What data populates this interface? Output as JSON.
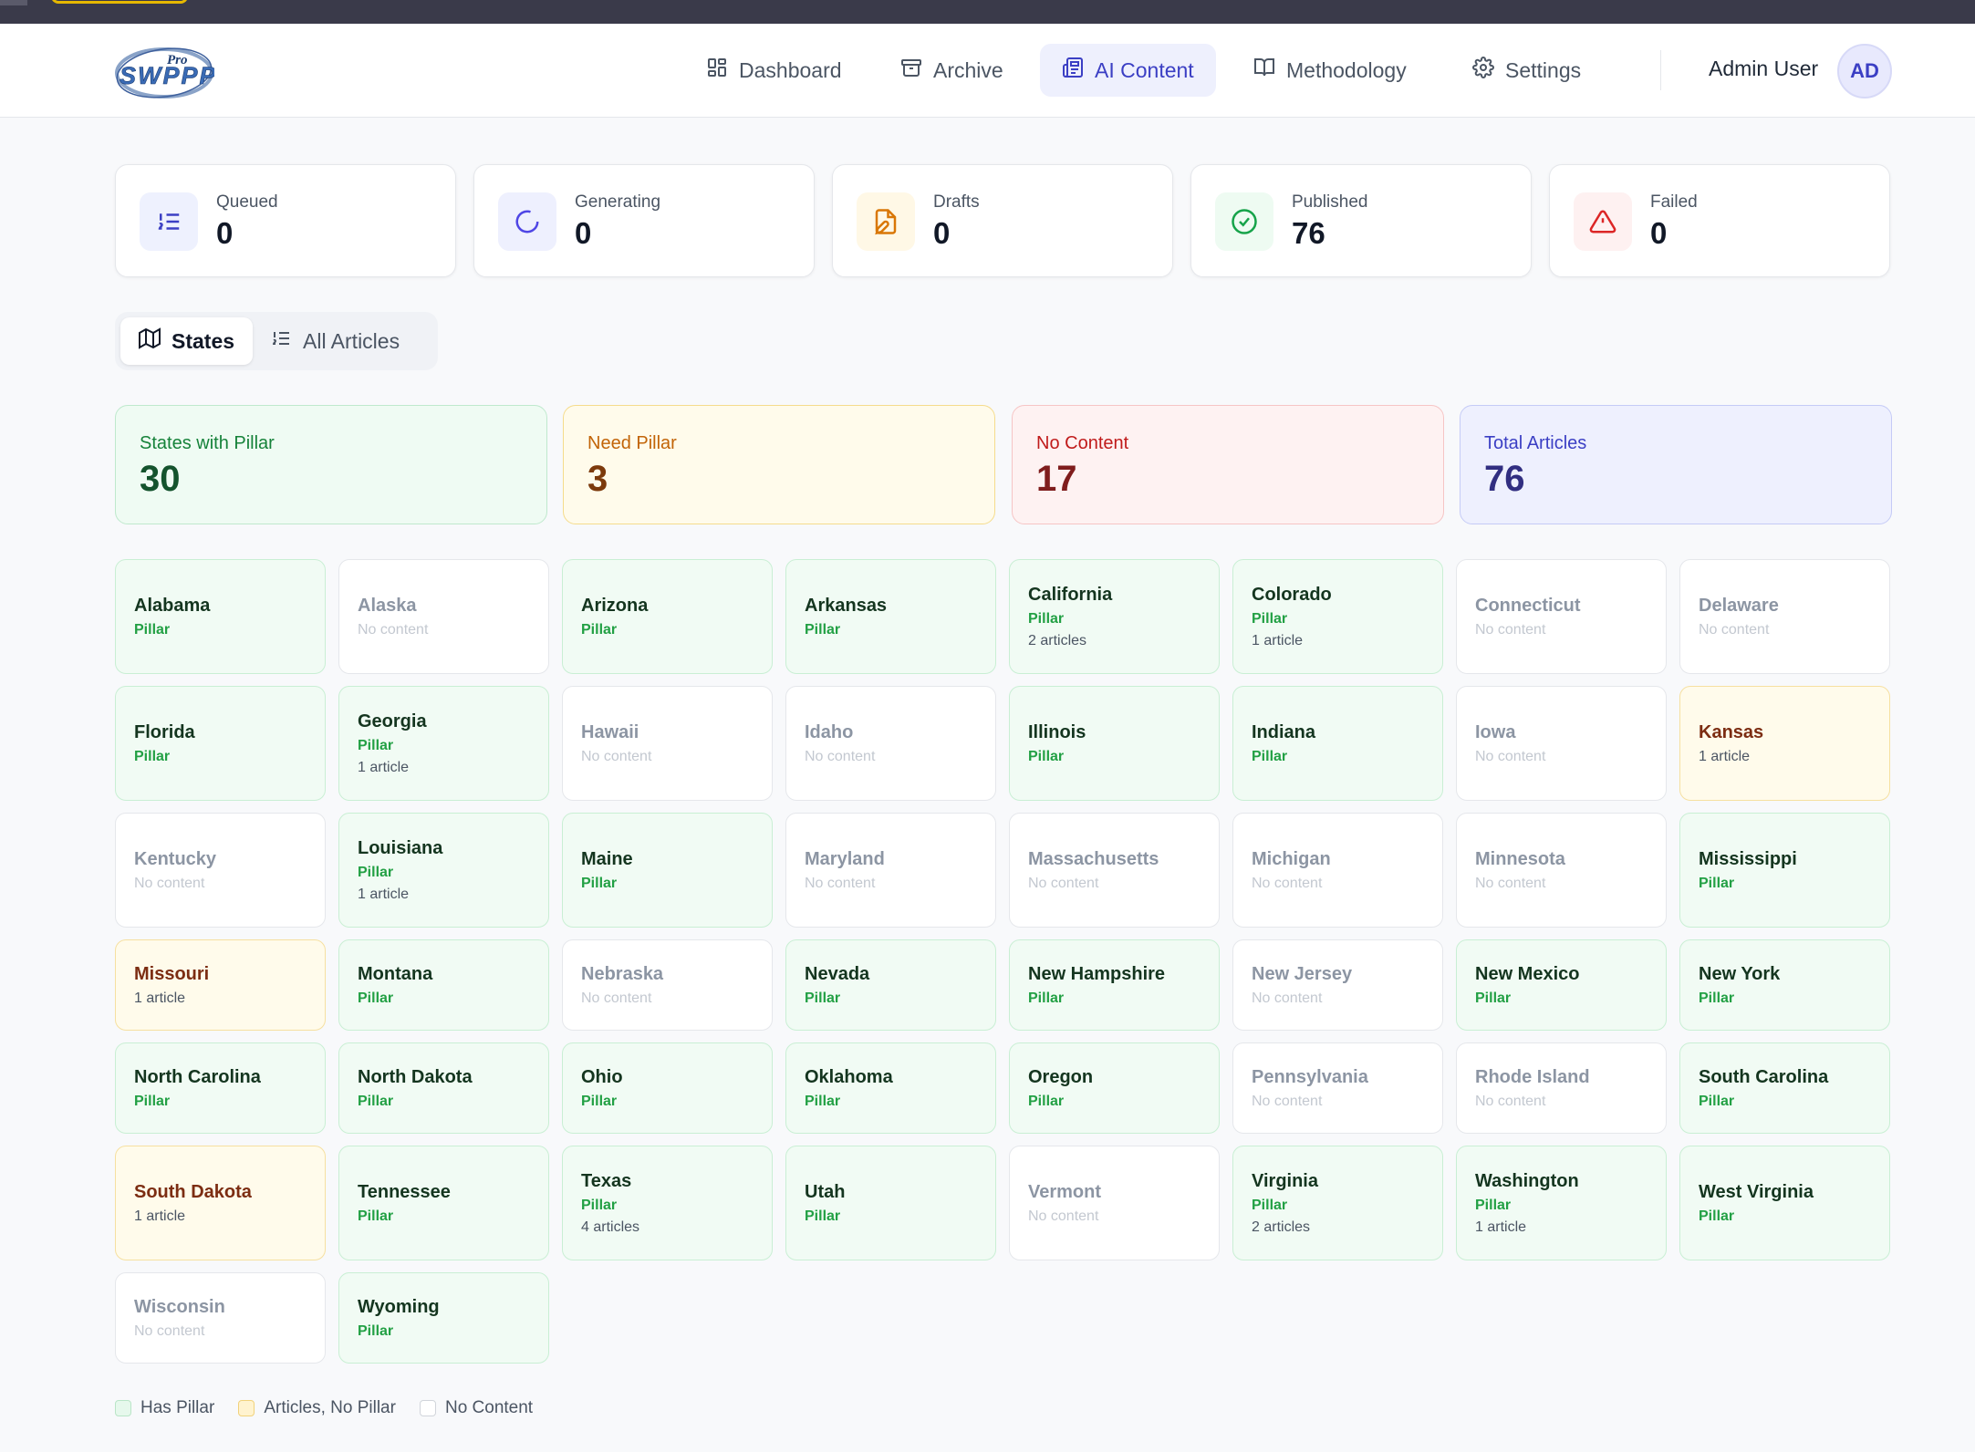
{
  "nav": {
    "logo_text": "SWPPP",
    "logo_sup": "Pro",
    "items": [
      {
        "label": "Dashboard",
        "icon": "dashboard-icon"
      },
      {
        "label": "Archive",
        "icon": "archive-icon"
      },
      {
        "label": "AI Content",
        "icon": "newspaper-icon"
      },
      {
        "label": "Methodology",
        "icon": "book-icon"
      },
      {
        "label": "Settings",
        "icon": "gear-icon"
      }
    ],
    "active": "AI Content",
    "user_name": "Admin User",
    "user_initials": "AD"
  },
  "stats": [
    {
      "label": "Queued",
      "value": "0",
      "icon": "list-ordered-icon",
      "color": "#3b3fc4"
    },
    {
      "label": "Generating",
      "value": "0",
      "icon": "spinner-icon",
      "color": "#4f46e5"
    },
    {
      "label": "Drafts",
      "value": "0",
      "icon": "file-edit-icon",
      "color": "#d97706"
    },
    {
      "label": "Published",
      "value": "76",
      "icon": "check-circle-icon",
      "color": "#16a34a"
    },
    {
      "label": "Failed",
      "value": "0",
      "icon": "alert-triangle-icon",
      "color": "#dc2626"
    }
  ],
  "tabs": [
    {
      "label": "States",
      "icon": "map-icon",
      "active": true
    },
    {
      "label": "All Articles",
      "icon": "list-icon",
      "active": false
    }
  ],
  "summary": [
    {
      "label": "States with Pillar",
      "value": "30"
    },
    {
      "label": "Need Pillar",
      "value": "3"
    },
    {
      "label": "No Content",
      "value": "17"
    },
    {
      "label": "Total Articles",
      "value": "76"
    }
  ],
  "states": [
    {
      "name": "Alabama",
      "status": "Pillar",
      "count": ""
    },
    {
      "name": "Alaska",
      "status": "No content",
      "count": ""
    },
    {
      "name": "Arizona",
      "status": "Pillar",
      "count": ""
    },
    {
      "name": "Arkansas",
      "status": "Pillar",
      "count": ""
    },
    {
      "name": "California",
      "status": "Pillar",
      "count": "2 articles"
    },
    {
      "name": "Colorado",
      "status": "Pillar",
      "count": "1 article"
    },
    {
      "name": "Connecticut",
      "status": "No content",
      "count": ""
    },
    {
      "name": "Delaware",
      "status": "No content",
      "count": ""
    },
    {
      "name": "Florida",
      "status": "Pillar",
      "count": ""
    },
    {
      "name": "Georgia",
      "status": "Pillar",
      "count": "1 article"
    },
    {
      "name": "Hawaii",
      "status": "No content",
      "count": ""
    },
    {
      "name": "Idaho",
      "status": "No content",
      "count": ""
    },
    {
      "name": "Illinois",
      "status": "Pillar",
      "count": ""
    },
    {
      "name": "Indiana",
      "status": "Pillar",
      "count": ""
    },
    {
      "name": "Iowa",
      "status": "No content",
      "count": ""
    },
    {
      "name": "Kansas",
      "status": "",
      "count": "1 article"
    },
    {
      "name": "Kentucky",
      "status": "No content",
      "count": ""
    },
    {
      "name": "Louisiana",
      "status": "Pillar",
      "count": "1 article"
    },
    {
      "name": "Maine",
      "status": "Pillar",
      "count": ""
    },
    {
      "name": "Maryland",
      "status": "No content",
      "count": ""
    },
    {
      "name": "Massachusetts",
      "status": "No content",
      "count": ""
    },
    {
      "name": "Michigan",
      "status": "No content",
      "count": ""
    },
    {
      "name": "Minnesota",
      "status": "No content",
      "count": ""
    },
    {
      "name": "Mississippi",
      "status": "Pillar",
      "count": ""
    },
    {
      "name": "Missouri",
      "status": "",
      "count": "1 article"
    },
    {
      "name": "Montana",
      "status": "Pillar",
      "count": ""
    },
    {
      "name": "Nebraska",
      "status": "No content",
      "count": ""
    },
    {
      "name": "Nevada",
      "status": "Pillar",
      "count": ""
    },
    {
      "name": "New Hampshire",
      "status": "Pillar",
      "count": ""
    },
    {
      "name": "New Jersey",
      "status": "No content",
      "count": ""
    },
    {
      "name": "New Mexico",
      "status": "Pillar",
      "count": ""
    },
    {
      "name": "New York",
      "status": "Pillar",
      "count": ""
    },
    {
      "name": "North Carolina",
      "status": "Pillar",
      "count": ""
    },
    {
      "name": "North Dakota",
      "status": "Pillar",
      "count": ""
    },
    {
      "name": "Ohio",
      "status": "Pillar",
      "count": ""
    },
    {
      "name": "Oklahoma",
      "status": "Pillar",
      "count": ""
    },
    {
      "name": "Oregon",
      "status": "Pillar",
      "count": ""
    },
    {
      "name": "Pennsylvania",
      "status": "No content",
      "count": ""
    },
    {
      "name": "Rhode Island",
      "status": "No content",
      "count": ""
    },
    {
      "name": "South Carolina",
      "status": "Pillar",
      "count": ""
    },
    {
      "name": "South Dakota",
      "status": "",
      "count": "1 article"
    },
    {
      "name": "Tennessee",
      "status": "Pillar",
      "count": ""
    },
    {
      "name": "Texas",
      "status": "Pillar",
      "count": "4 articles"
    },
    {
      "name": "Utah",
      "status": "Pillar",
      "count": ""
    },
    {
      "name": "Vermont",
      "status": "No content",
      "count": ""
    },
    {
      "name": "Virginia",
      "status": "Pillar",
      "count": "2 articles"
    },
    {
      "name": "Washington",
      "status": "Pillar",
      "count": "1 article"
    },
    {
      "name": "West Virginia",
      "status": "Pillar",
      "count": ""
    },
    {
      "name": "Wisconsin",
      "status": "No content",
      "count": ""
    },
    {
      "name": "Wyoming",
      "status": "Pillar",
      "count": ""
    }
  ],
  "legend": [
    {
      "label": "Has Pillar",
      "color": "#c9efd4"
    },
    {
      "label": "Articles, No Pillar",
      "color": "#f6e0a0"
    },
    {
      "label": "No Content",
      "color": "#ffffff"
    }
  ]
}
